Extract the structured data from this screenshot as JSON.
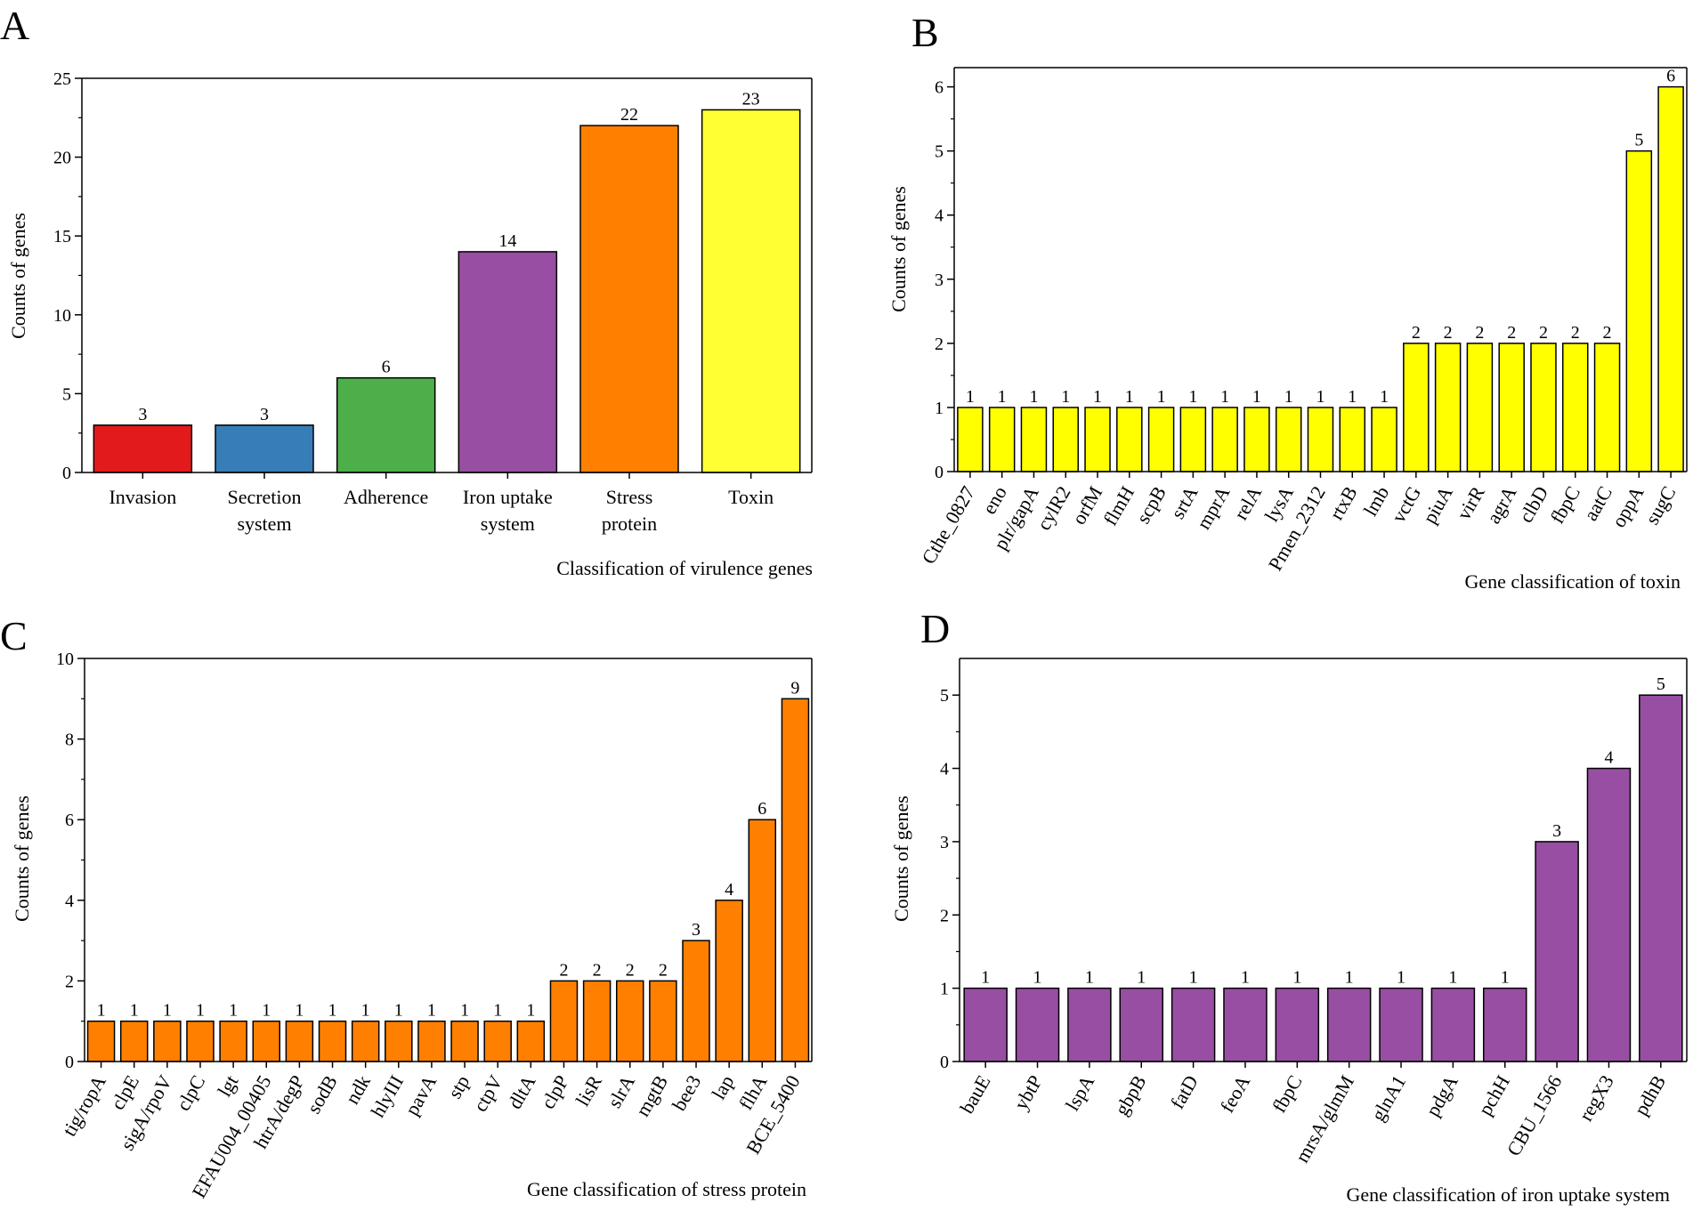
{
  "chart_data": [
    {
      "panel": "A",
      "type": "bar",
      "xlabel": "Classification of virulence genes",
      "ylabel": "Counts of genes",
      "ylim": [
        0,
        25
      ],
      "yticks": [
        0,
        5,
        10,
        15,
        20,
        25
      ],
      "categories": [
        "Invasion",
        "Secretion system",
        "Adherence",
        "Iron uptake system",
        "Stress protein",
        "Toxin"
      ],
      "category_lines": [
        [
          "Invasion"
        ],
        [
          "Secretion",
          "system"
        ],
        [
          "Adherence"
        ],
        [
          "Iron uptake",
          "system"
        ],
        [
          "Stress",
          "protein"
        ],
        [
          "Toxin"
        ]
      ],
      "values": [
        3,
        3,
        6,
        14,
        22,
        23
      ],
      "colors": [
        "#e31a1c",
        "#377eb8",
        "#4daf4a",
        "#984ea3",
        "#ff7f00",
        "#ffff33"
      ]
    },
    {
      "panel": "B",
      "type": "bar",
      "xlabel": "Gene classification of  toxin",
      "ylabel": "Counts of genes",
      "ylim": [
        0,
        6.3
      ],
      "yticks": [
        0,
        1,
        2,
        3,
        4,
        5,
        6
      ],
      "categories": [
        "Cthe_0827",
        "eno",
        "plr/gapA",
        "cylR2",
        "orfM",
        "flmH",
        "scpB",
        "srtA",
        "mprA",
        "relA",
        "lysA",
        "Pmen_2312",
        "rtxB",
        "lmb",
        "vctG",
        "piuA",
        "virR",
        "agrA",
        "clbD",
        "fbpC",
        "aatC",
        "oppA",
        "sugC"
      ],
      "values": [
        1,
        1,
        1,
        1,
        1,
        1,
        1,
        1,
        1,
        1,
        1,
        1,
        1,
        1,
        2,
        2,
        2,
        2,
        2,
        2,
        2,
        5,
        6
      ],
      "colors": [
        "#ffff00"
      ]
    },
    {
      "panel": "C",
      "type": "bar",
      "xlabel": "Gene classification of stress protein",
      "ylabel": "Counts of genes",
      "ylim": [
        0,
        10
      ],
      "yticks": [
        0,
        2,
        4,
        6,
        8,
        10
      ],
      "categories": [
        "tig/ropA",
        "clpE",
        "sigA/rpoV",
        "clpC",
        "lgt",
        "EFAU004_00405",
        "htrA/degP",
        "sodB",
        "ndk",
        "hlyIII",
        "pavA",
        "stp",
        "ctpV",
        "dltA",
        "clpP",
        "lisR",
        "slrA",
        "mgtB",
        "bee3",
        "lap",
        "flhA",
        "BCE_5400"
      ],
      "values": [
        1,
        1,
        1,
        1,
        1,
        1,
        1,
        1,
        1,
        1,
        1,
        1,
        1,
        1,
        2,
        2,
        2,
        2,
        3,
        4,
        6,
        9
      ],
      "colors": [
        "#ff8000"
      ]
    },
    {
      "panel": "D",
      "type": "bar",
      "xlabel": "Gene classification of iron uptake system",
      "ylabel": "Counts of genes",
      "ylim": [
        0,
        5.5
      ],
      "yticks": [
        0,
        1,
        2,
        3,
        4,
        5
      ],
      "categories": [
        "bauE",
        "ybtP",
        "lspA",
        "gbpB",
        "fatD",
        "feoA",
        "fbpC",
        "mrsA/glmM",
        "glnA1",
        "pdgA",
        "pchH",
        "CBU_1566",
        "regX3",
        "pdhB"
      ],
      "values": [
        1,
        1,
        1,
        1,
        1,
        1,
        1,
        1,
        1,
        1,
        1,
        3,
        4,
        5
      ],
      "colors": [
        "#984ea3"
      ]
    }
  ]
}
